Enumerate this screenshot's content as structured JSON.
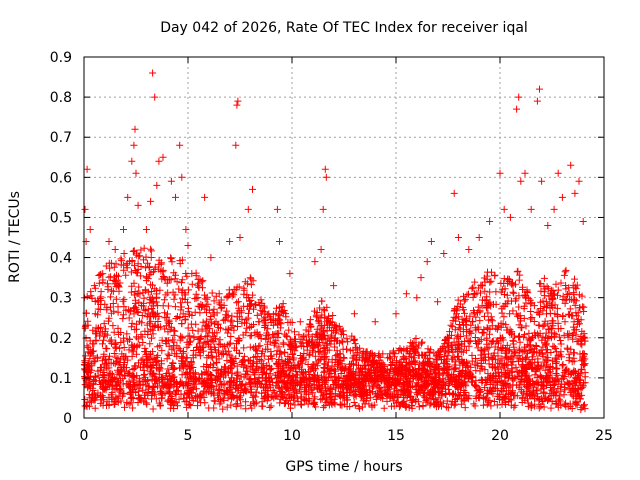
{
  "chart_data": {
    "type": "scatter",
    "title": "Day 042 of 2026, Rate Of TEC Index for receiver iqal",
    "xlabel": "GPS time / hours",
    "ylabel": "ROTI / TECUs",
    "xlim": [
      0,
      25
    ],
    "ylim": [
      0,
      0.9
    ],
    "xticks": [
      "0",
      "5",
      "10",
      "15",
      "20",
      "25"
    ],
    "yticks": [
      "0",
      "0.1",
      "0.2",
      "0.3",
      "0.4",
      "0.5",
      "0.6",
      "0.7",
      "0.8",
      "0.9"
    ],
    "grid": true,
    "marker": "+",
    "series_color": "#ff0000",
    "series": [
      {
        "name": "ROTI",
        "points": [
          [
            0.05,
            0.52
          ],
          [
            0.1,
            0.44
          ],
          [
            0.15,
            0.62
          ],
          [
            0.3,
            0.47
          ],
          [
            0.5,
            0.33
          ],
          [
            0.9,
            0.36
          ],
          [
            1.2,
            0.44
          ],
          [
            1.5,
            0.42
          ],
          [
            1.9,
            0.47
          ],
          [
            2.1,
            0.55
          ],
          [
            2.3,
            0.64
          ],
          [
            2.4,
            0.68
          ],
          [
            2.45,
            0.72
          ],
          [
            2.5,
            0.61
          ],
          [
            2.6,
            0.53
          ],
          [
            3.0,
            0.47
          ],
          [
            3.2,
            0.54
          ],
          [
            3.3,
            0.86
          ],
          [
            3.4,
            0.8
          ],
          [
            3.5,
            0.58
          ],
          [
            3.6,
            0.64
          ],
          [
            3.8,
            0.65
          ],
          [
            4.2,
            0.59
          ],
          [
            4.4,
            0.55
          ],
          [
            4.6,
            0.68
          ],
          [
            4.7,
            0.6
          ],
          [
            4.9,
            0.47
          ],
          [
            5.0,
            0.43
          ],
          [
            5.8,
            0.55
          ],
          [
            6.1,
            0.4
          ],
          [
            6.5,
            0.31
          ],
          [
            7.0,
            0.44
          ],
          [
            7.3,
            0.68
          ],
          [
            7.35,
            0.78
          ],
          [
            7.4,
            0.79
          ],
          [
            7.5,
            0.45
          ],
          [
            7.9,
            0.52
          ],
          [
            8.1,
            0.57
          ],
          [
            9.3,
            0.52
          ],
          [
            9.4,
            0.44
          ],
          [
            9.9,
            0.36
          ],
          [
            10.4,
            0.24
          ],
          [
            11.1,
            0.39
          ],
          [
            11.4,
            0.42
          ],
          [
            11.5,
            0.52
          ],
          [
            11.6,
            0.62
          ],
          [
            11.65,
            0.6
          ],
          [
            12.0,
            0.33
          ],
          [
            13.0,
            0.26
          ],
          [
            14.0,
            0.24
          ],
          [
            15.0,
            0.26
          ],
          [
            15.5,
            0.31
          ],
          [
            16.0,
            0.3
          ],
          [
            16.2,
            0.35
          ],
          [
            16.5,
            0.39
          ],
          [
            16.7,
            0.44
          ],
          [
            17.0,
            0.29
          ],
          [
            17.3,
            0.41
          ],
          [
            17.8,
            0.56
          ],
          [
            18.0,
            0.45
          ],
          [
            18.5,
            0.42
          ],
          [
            19.0,
            0.45
          ],
          [
            19.5,
            0.49
          ],
          [
            20.0,
            0.61
          ],
          [
            20.2,
            0.52
          ],
          [
            20.5,
            0.5
          ],
          [
            20.8,
            0.77
          ],
          [
            20.9,
            0.8
          ],
          [
            21.0,
            0.59
          ],
          [
            21.2,
            0.61
          ],
          [
            21.5,
            0.52
          ],
          [
            21.8,
            0.79
          ],
          [
            21.9,
            0.82
          ],
          [
            22.0,
            0.59
          ],
          [
            22.3,
            0.48
          ],
          [
            22.6,
            0.52
          ],
          [
            22.8,
            0.61
          ],
          [
            23.0,
            0.55
          ],
          [
            23.4,
            0.63
          ],
          [
            23.6,
            0.56
          ],
          [
            23.8,
            0.59
          ],
          [
            24.0,
            0.49
          ]
        ],
        "envelope": [
          [
            0,
            0.3
          ],
          [
            0.5,
            0.34
          ],
          [
            1,
            0.38
          ],
          [
            1.5,
            0.4
          ],
          [
            2,
            0.42
          ],
          [
            2.5,
            0.44
          ],
          [
            3,
            0.42
          ],
          [
            3.5,
            0.44
          ],
          [
            4,
            0.4
          ],
          [
            4.5,
            0.42
          ],
          [
            5,
            0.38
          ],
          [
            5.5,
            0.36
          ],
          [
            6,
            0.33
          ],
          [
            6.5,
            0.3
          ],
          [
            7,
            0.32
          ],
          [
            7.5,
            0.34
          ],
          [
            8,
            0.36
          ],
          [
            8.5,
            0.3
          ],
          [
            9,
            0.26
          ],
          [
            9.5,
            0.3
          ],
          [
            10,
            0.24
          ],
          [
            10.5,
            0.2
          ],
          [
            11,
            0.26
          ],
          [
            11.5,
            0.3
          ],
          [
            12,
            0.26
          ],
          [
            12.5,
            0.22
          ],
          [
            13,
            0.2
          ],
          [
            13.5,
            0.17
          ],
          [
            14,
            0.16
          ],
          [
            14.5,
            0.16
          ],
          [
            15,
            0.17
          ],
          [
            15.5,
            0.18
          ],
          [
            16,
            0.2
          ],
          [
            16.5,
            0.18
          ],
          [
            17,
            0.16
          ],
          [
            17.5,
            0.22
          ],
          [
            18,
            0.3
          ],
          [
            18.5,
            0.32
          ],
          [
            19,
            0.36
          ],
          [
            19.5,
            0.38
          ],
          [
            20,
            0.34
          ],
          [
            20.5,
            0.36
          ],
          [
            21,
            0.38
          ],
          [
            21.5,
            0.3
          ],
          [
            22,
            0.36
          ],
          [
            22.5,
            0.32
          ],
          [
            23,
            0.36
          ],
          [
            23.5,
            0.4
          ],
          [
            24,
            0.3
          ]
        ],
        "baseline_range": [
          0.02,
          0.1
        ]
      }
    ]
  }
}
